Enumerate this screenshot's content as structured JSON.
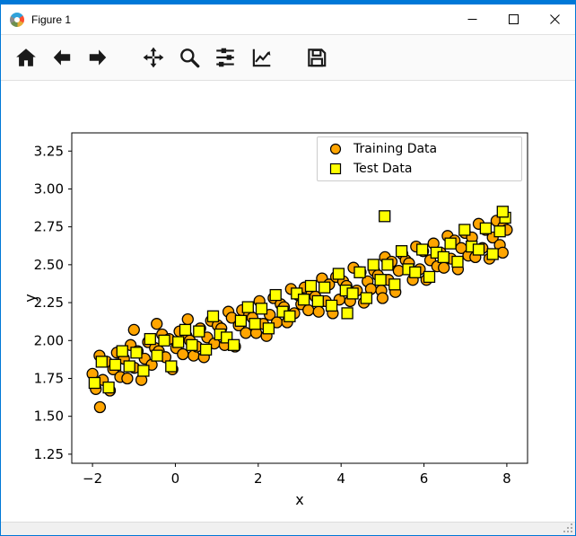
{
  "window": {
    "title": "Figure 1",
    "accent_color": "#0078d7",
    "controls": [
      "minimize",
      "maximize",
      "close"
    ]
  },
  "toolbar": {
    "icon_color": "#1a1a1a",
    "items": [
      "home-icon",
      "back-arrow-icon",
      "forward-arrow-icon",
      "pan-icon",
      "zoom-icon",
      "configure-subplots-icon",
      "edit-parameters-icon",
      "save-icon"
    ]
  },
  "chart_data": {
    "type": "scatter",
    "title": "",
    "xlabel": "x",
    "ylabel": "y",
    "xlim": [
      -2.5,
      8.5
    ],
    "ylim": [
      1.19,
      3.37
    ],
    "xticks": [
      -2,
      0,
      2,
      4,
      6,
      8
    ],
    "xtick_labels": [
      "−2",
      "0",
      "2",
      "4",
      "6",
      "8"
    ],
    "yticks": [
      1.25,
      1.5,
      1.75,
      2.0,
      2.25,
      2.5,
      2.75,
      3.0,
      3.25
    ],
    "ytick_labels": [
      "1.25",
      "1.50",
      "1.75",
      "2.00",
      "2.25",
      "2.50",
      "2.75",
      "3.00",
      "3.25"
    ],
    "grid": false,
    "legend_position": "upper right",
    "series": [
      {
        "name": "Training Data",
        "marker": "circle",
        "color": "#ffa500",
        "edge": "#000000",
        "points": [
          [
            -2.0,
            1.78
          ],
          [
            -1.92,
            1.68
          ],
          [
            -1.83,
            1.9
          ],
          [
            -1.75,
            1.74
          ],
          [
            -1.66,
            1.86
          ],
          [
            -1.58,
            1.67
          ],
          [
            -1.5,
            1.81
          ],
          [
            -1.41,
            1.92
          ],
          [
            -1.33,
            1.76
          ],
          [
            -1.24,
            1.88
          ],
          [
            -1.16,
            1.75
          ],
          [
            -1.08,
            1.97
          ],
          [
            -0.99,
            1.82
          ],
          [
            -0.91,
            1.93
          ],
          [
            -0.82,
            1.74
          ],
          [
            -0.74,
            1.88
          ],
          [
            -0.66,
            1.99
          ],
          [
            -0.57,
            1.84
          ],
          [
            -0.49,
            1.95
          ],
          [
            -0.4,
            1.93
          ],
          [
            -0.32,
            2.04
          ],
          [
            -0.24,
            1.89
          ],
          [
            -0.15,
            2.01
          ],
          [
            -0.07,
            1.81
          ],
          [
            0.02,
            1.95
          ],
          [
            0.1,
            2.06
          ],
          [
            0.18,
            1.91
          ],
          [
            0.27,
            2.03
          ],
          [
            0.35,
            2.0
          ],
          [
            0.44,
            1.9
          ],
          [
            0.52,
            1.96
          ],
          [
            0.6,
            2.08
          ],
          [
            0.69,
            1.89
          ],
          [
            0.77,
            2.02
          ],
          [
            0.86,
            2.13
          ],
          [
            0.94,
            1.98
          ],
          [
            1.02,
            2.1
          ],
          [
            1.11,
            2.08
          ],
          [
            1.19,
            1.97
          ],
          [
            1.28,
            2.19
          ],
          [
            1.36,
            2.15
          ],
          [
            1.44,
            1.96
          ],
          [
            1.53,
            2.1
          ],
          [
            1.61,
            2.2
          ],
          [
            1.7,
            2.05
          ],
          [
            1.78,
            2.17
          ],
          [
            1.86,
            2.15
          ],
          [
            1.95,
            2.05
          ],
          [
            2.03,
            2.26
          ],
          [
            2.12,
            2.11
          ],
          [
            2.2,
            2.03
          ],
          [
            2.28,
            2.17
          ],
          [
            2.37,
            2.28
          ],
          [
            2.45,
            2.12
          ],
          [
            2.54,
            2.24
          ],
          [
            2.62,
            2.22
          ],
          [
            2.7,
            2.12
          ],
          [
            2.79,
            2.34
          ],
          [
            2.87,
            2.18
          ],
          [
            2.96,
            2.3
          ],
          [
            3.04,
            2.24
          ],
          [
            3.12,
            2.35
          ],
          [
            3.21,
            2.2
          ],
          [
            3.29,
            2.31
          ],
          [
            3.38,
            2.29
          ],
          [
            3.46,
            2.19
          ],
          [
            3.54,
            2.41
          ],
          [
            3.63,
            2.26
          ],
          [
            3.71,
            2.37
          ],
          [
            3.8,
            2.18
          ],
          [
            3.88,
            2.42
          ],
          [
            3.96,
            2.27
          ],
          [
            4.05,
            2.39
          ],
          [
            4.13,
            2.36
          ],
          [
            4.22,
            2.26
          ],
          [
            4.3,
            2.48
          ],
          [
            4.38,
            2.33
          ],
          [
            4.47,
            2.45
          ],
          [
            4.55,
            2.25
          ],
          [
            4.64,
            2.39
          ],
          [
            4.72,
            2.34
          ],
          [
            4.8,
            2.46
          ],
          [
            4.89,
            2.43
          ],
          [
            4.97,
            2.33
          ],
          [
            5.06,
            2.55
          ],
          [
            5.14,
            2.4
          ],
          [
            5.22,
            2.52
          ],
          [
            5.31,
            2.32
          ],
          [
            5.39,
            2.46
          ],
          [
            5.48,
            2.57
          ],
          [
            5.56,
            2.53
          ],
          [
            5.64,
            2.51
          ],
          [
            5.73,
            2.4
          ],
          [
            5.81,
            2.62
          ],
          [
            5.9,
            2.47
          ],
          [
            5.98,
            2.59
          ],
          [
            6.06,
            2.4
          ],
          [
            6.15,
            2.53
          ],
          [
            6.23,
            2.64
          ],
          [
            6.32,
            2.49
          ],
          [
            6.4,
            2.58
          ],
          [
            6.48,
            2.48
          ],
          [
            6.57,
            2.69
          ],
          [
            6.65,
            2.54
          ],
          [
            6.74,
            2.66
          ],
          [
            6.82,
            2.47
          ],
          [
            6.9,
            2.61
          ],
          [
            6.99,
            2.71
          ],
          [
            7.07,
            2.56
          ],
          [
            7.16,
            2.68
          ],
          [
            7.24,
            2.55
          ],
          [
            7.32,
            2.77
          ],
          [
            7.41,
            2.61
          ],
          [
            7.49,
            2.73
          ],
          [
            7.58,
            2.54
          ],
          [
            7.66,
            2.68
          ],
          [
            7.75,
            2.79
          ],
          [
            7.83,
            2.63
          ],
          [
            7.91,
            2.75
          ],
          [
            8.0,
            2.73
          ],
          [
            -1.82,
            1.56
          ],
          [
            -1.0,
            2.07
          ],
          [
            -0.45,
            2.11
          ],
          [
            0.3,
            2.14
          ],
          [
            5.0,
            2.28
          ],
          [
            7.9,
            2.58
          ]
        ]
      },
      {
        "name": "Test Data",
        "marker": "square",
        "color": "#ffff00",
        "edge": "#000000",
        "points": [
          [
            -1.95,
            1.72
          ],
          [
            -1.78,
            1.86
          ],
          [
            -1.61,
            1.69
          ],
          [
            -1.45,
            1.84
          ],
          [
            -1.28,
            1.93
          ],
          [
            -1.11,
            1.83
          ],
          [
            -0.94,
            1.92
          ],
          [
            -0.77,
            1.8
          ],
          [
            -0.61,
            2.01
          ],
          [
            -0.44,
            1.9
          ],
          [
            -0.27,
            2.0
          ],
          [
            -0.1,
            1.83
          ],
          [
            0.07,
            1.99
          ],
          [
            0.24,
            2.07
          ],
          [
            0.4,
            1.97
          ],
          [
            0.57,
            2.06
          ],
          [
            0.74,
            1.94
          ],
          [
            0.91,
            2.16
          ],
          [
            1.08,
            2.04
          ],
          [
            1.24,
            2.02
          ],
          [
            1.41,
            1.97
          ],
          [
            1.58,
            2.13
          ],
          [
            1.75,
            2.22
          ],
          [
            1.92,
            2.11
          ],
          [
            2.08,
            2.21
          ],
          [
            2.25,
            2.08
          ],
          [
            2.42,
            2.3
          ],
          [
            2.59,
            2.19
          ],
          [
            2.76,
            2.16
          ],
          [
            2.93,
            2.31
          ],
          [
            3.1,
            2.27
          ],
          [
            3.27,
            2.36
          ],
          [
            3.44,
            2.26
          ],
          [
            3.6,
            2.35
          ],
          [
            3.77,
            2.23
          ],
          [
            3.94,
            2.44
          ],
          [
            4.11,
            2.33
          ],
          [
            4.28,
            2.31
          ],
          [
            4.45,
            2.45
          ],
          [
            4.61,
            2.28
          ],
          [
            4.78,
            2.5
          ],
          [
            4.95,
            2.4
          ],
          [
            5.12,
            2.5
          ],
          [
            5.29,
            2.37
          ],
          [
            5.46,
            2.59
          ],
          [
            5.62,
            2.47
          ],
          [
            5.79,
            2.45
          ],
          [
            5.96,
            2.6
          ],
          [
            6.13,
            2.42
          ],
          [
            6.3,
            2.58
          ],
          [
            6.47,
            2.55
          ],
          [
            6.64,
            2.64
          ],
          [
            6.81,
            2.52
          ],
          [
            6.98,
            2.73
          ],
          [
            7.15,
            2.62
          ],
          [
            7.32,
            2.6
          ],
          [
            7.49,
            2.74
          ],
          [
            7.66,
            2.57
          ],
          [
            7.83,
            2.72
          ],
          [
            7.96,
            2.81
          ],
          [
            4.15,
            2.18
          ],
          [
            5.05,
            2.82
          ],
          [
            7.9,
            2.85
          ]
        ]
      }
    ]
  }
}
